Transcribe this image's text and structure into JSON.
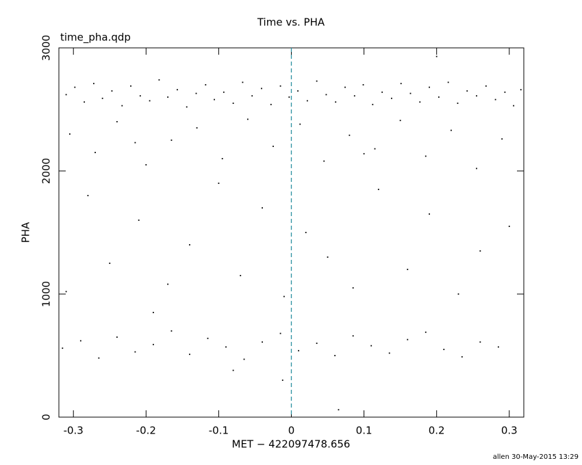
{
  "chart_data": {
    "type": "scatter",
    "title": "Time vs. PHA",
    "annotation": "time_pha.qdp",
    "x_label": "MET − 422097478.656",
    "y_label": "PHA",
    "footer": "allen 30-May-2015 13:29",
    "color": "#000000",
    "reference_line": {
      "x": 0,
      "color": "#2a90a0",
      "style": "dashed"
    },
    "xlim": [
      -0.32,
      0.32
    ],
    "ylim": [
      0,
      3000
    ],
    "xticks": [
      -0.3,
      -0.2,
      -0.1,
      0,
      0.1,
      0.2,
      0.3
    ],
    "yticks": [
      0,
      1000,
      2000,
      3000
    ],
    "x": [
      -0.31,
      -0.298,
      -0.285,
      -0.272,
      -0.26,
      -0.247,
      -0.233,
      -0.221,
      -0.208,
      -0.195,
      -0.182,
      -0.17,
      -0.157,
      -0.144,
      -0.131,
      -0.118,
      -0.106,
      -0.093,
      -0.08,
      -0.067,
      -0.054,
      -0.041,
      -0.028,
      -0.015,
      -0.003,
      0.009,
      0.022,
      0.035,
      0.048,
      0.061,
      0.074,
      0.087,
      0.099,
      0.112,
      0.125,
      0.138,
      0.151,
      0.164,
      0.177,
      0.19,
      0.203,
      0.216,
      0.229,
      0.242,
      0.255,
      0.268,
      0.281,
      0.294,
      0.306,
      0.316,
      -0.305,
      -0.27,
      -0.24,
      -0.2,
      -0.165,
      -0.13,
      -0.095,
      -0.06,
      -0.025,
      0.012,
      0.045,
      0.08,
      0.115,
      0.15,
      0.185,
      0.22,
      0.255,
      0.29,
      -0.215,
      0.1,
      -0.31,
      -0.28,
      -0.25,
      -0.21,
      -0.17,
      -0.14,
      -0.1,
      -0.07,
      -0.04,
      -0.01,
      0.02,
      0.05,
      0.085,
      0.12,
      0.16,
      0.19,
      0.23,
      0.26,
      0.3,
      -0.19,
      -0.315,
      -0.29,
      -0.265,
      -0.24,
      -0.215,
      -0.19,
      -0.165,
      -0.14,
      -0.115,
      -0.09,
      -0.065,
      -0.04,
      -0.015,
      0.01,
      0.035,
      0.06,
      0.085,
      0.11,
      0.135,
      0.16,
      0.185,
      0.21,
      0.235,
      0.26,
      0.285,
      -0.08,
      0.2,
      0.065,
      -0.012
    ],
    "values": [
      2620,
      2680,
      2560,
      2710,
      2590,
      2650,
      2530,
      2690,
      2610,
      2570,
      2740,
      2600,
      2660,
      2520,
      2630,
      2700,
      2580,
      2640,
      2550,
      2720,
      2610,
      2670,
      2540,
      2690,
      2600,
      2650,
      2570,
      2730,
      2620,
      2560,
      2680,
      2610,
      2700,
      2540,
      2640,
      2590,
      2710,
      2630,
      2560,
      2680,
      2600,
      2720,
      2550,
      2650,
      2610,
      2690,
      2580,
      2640,
      2530,
      2660,
      2300,
      2150,
      2400,
      2050,
      2250,
      2350,
      2100,
      2420,
      2200,
      2380,
      2080,
      2290,
      2180,
      2410,
      2120,
      2330,
      2020,
      2260,
      2230,
      2140,
      1020,
      1800,
      1250,
      1600,
      1080,
      1400,
      1900,
      1150,
      1700,
      980,
      1500,
      1300,
      1050,
      1850,
      1200,
      1650,
      1000,
      1350,
      1550,
      850,
      560,
      620,
      480,
      650,
      530,
      590,
      700,
      510,
      640,
      570,
      470,
      610,
      680,
      540,
      600,
      500,
      660,
      580,
      520,
      630,
      690,
      550,
      490,
      610,
      570,
      380,
      2930,
      60,
      300
    ]
  }
}
